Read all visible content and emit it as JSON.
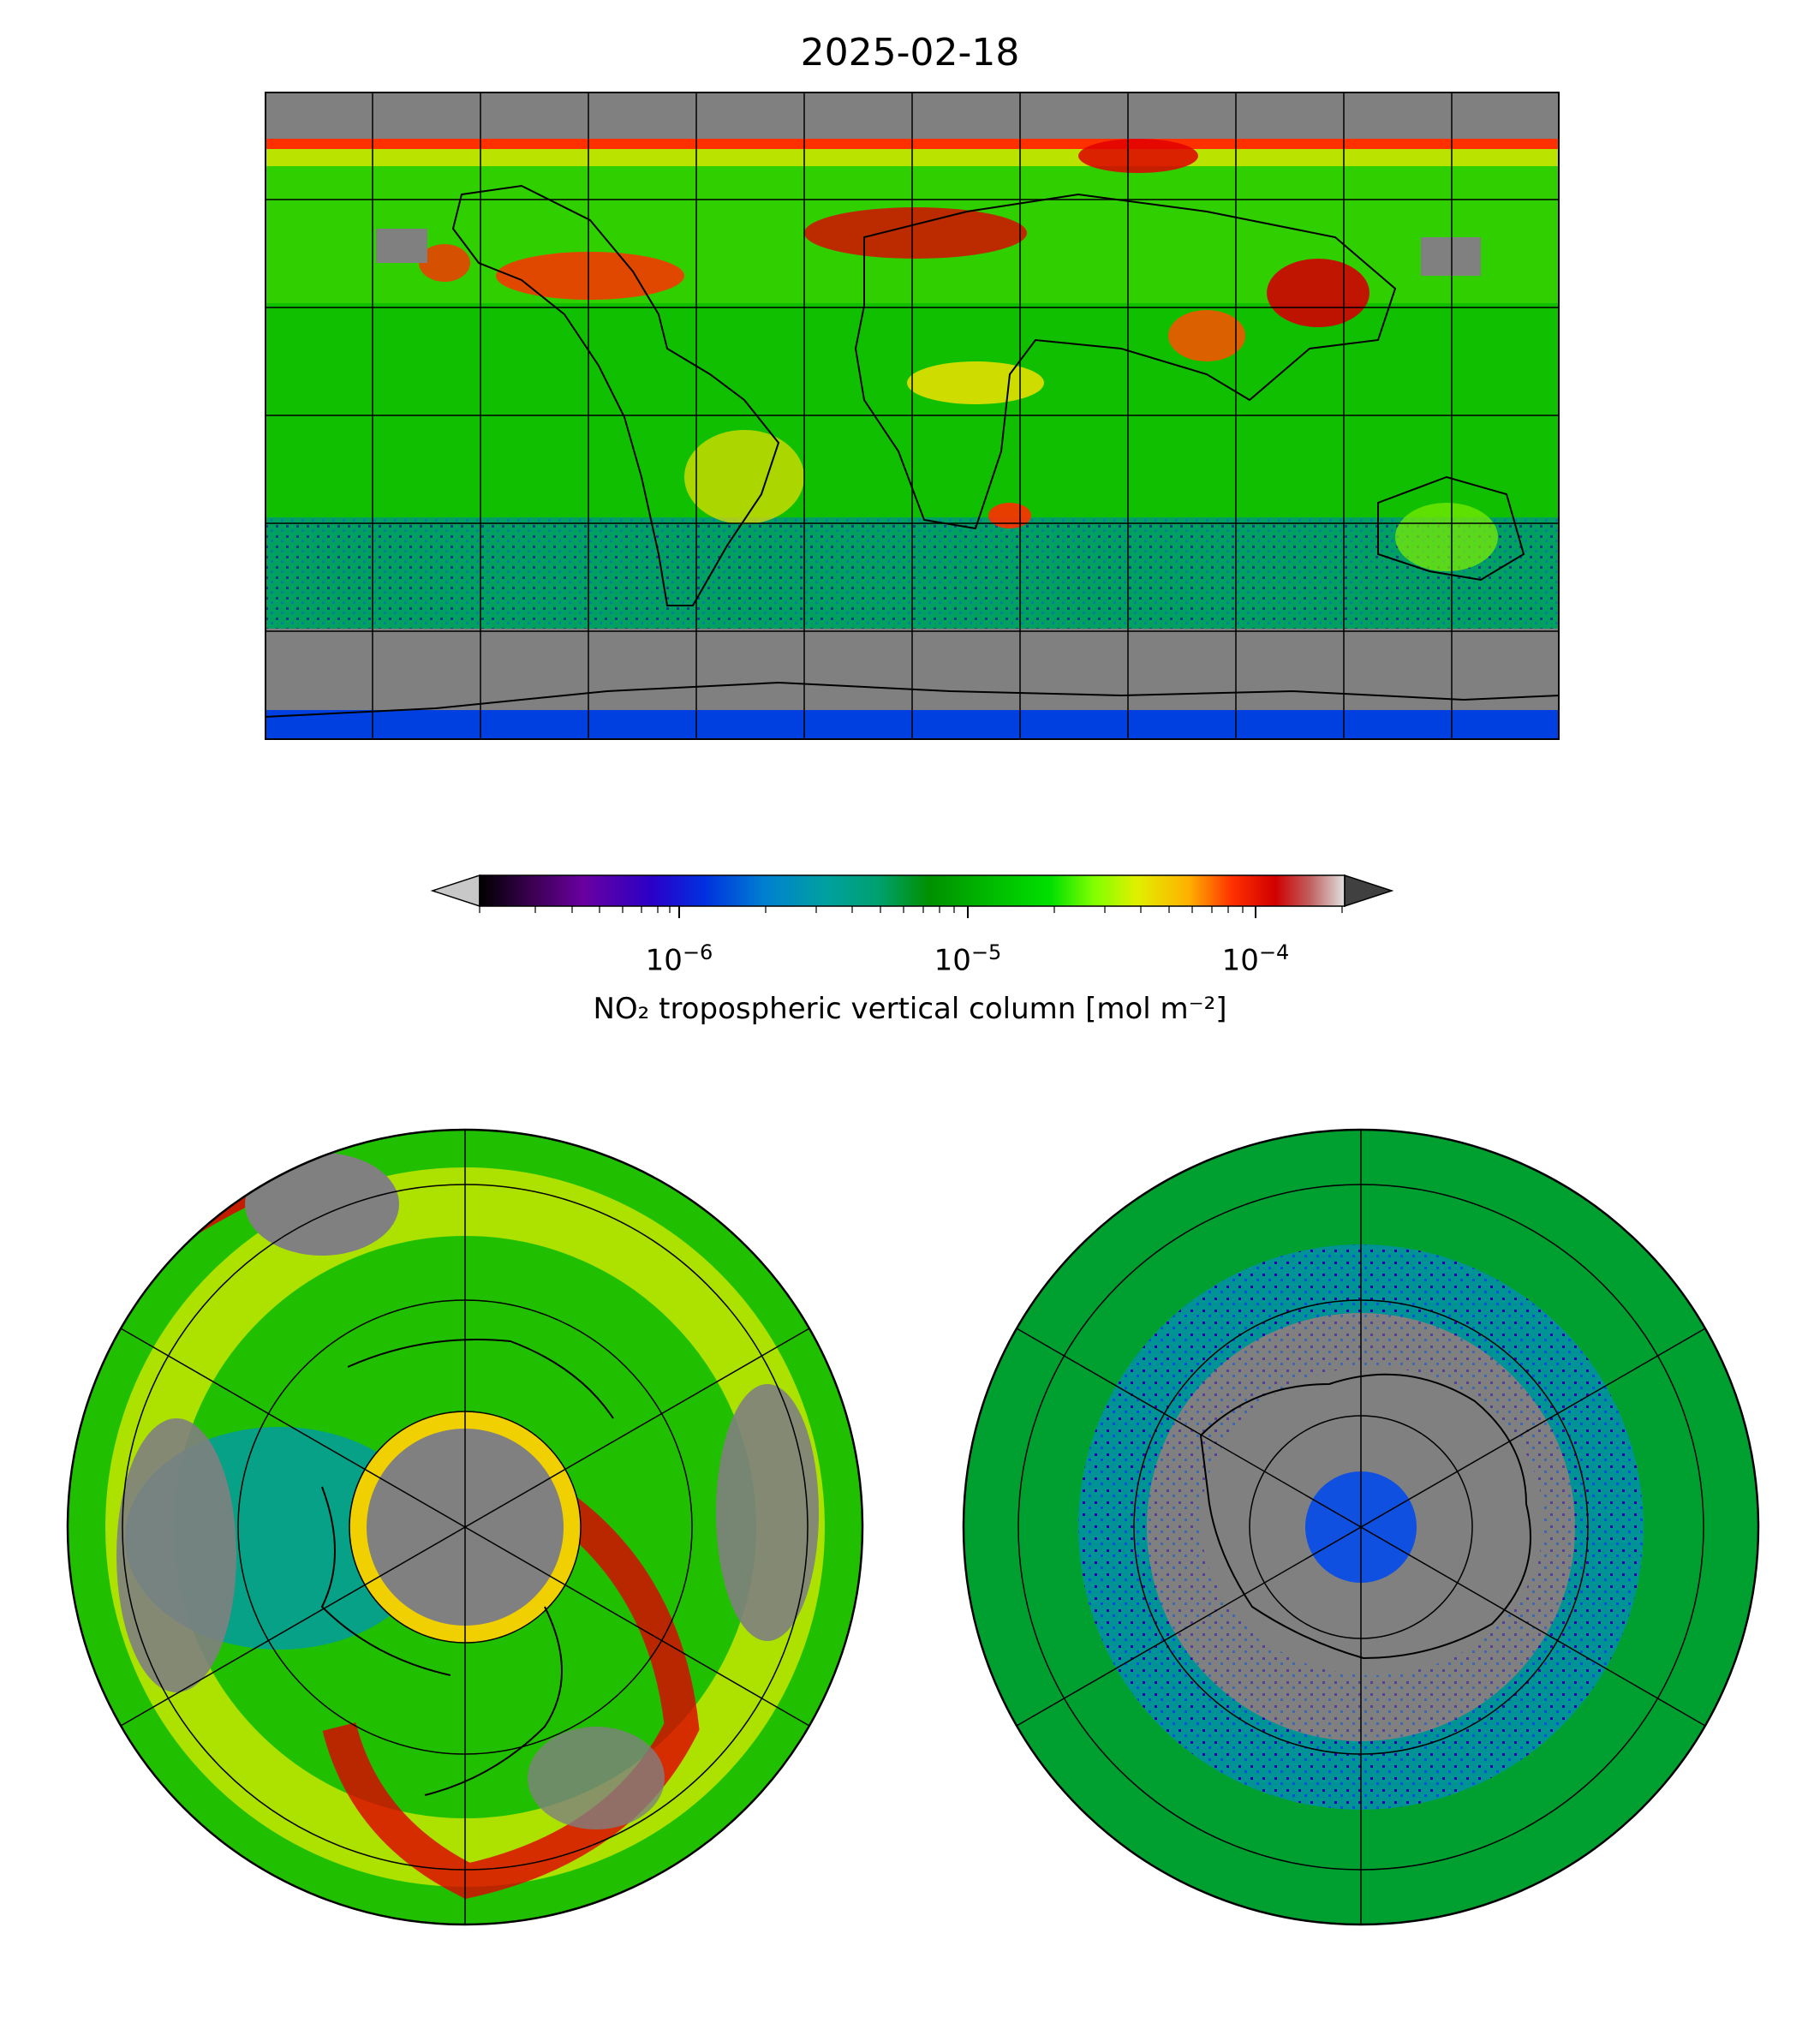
{
  "title": "2025-02-18",
  "colorbar": {
    "label": "NO₂ tropospheric vertical column [mol m⁻²]",
    "ticks": [
      {
        "base": "10",
        "exp": "−6",
        "value": 1e-06
      },
      {
        "base": "10",
        "exp": "−5",
        "value": 1e-05
      },
      {
        "base": "10",
        "exp": "−4",
        "value": 0.0001
      }
    ],
    "range": [
      2e-07,
      0.0002
    ],
    "scale": "log",
    "extend": "both",
    "colors": [
      "#000000",
      "#3a0050",
      "#6a00a0",
      "#2a00c8",
      "#0030e0",
      "#0080d0",
      "#00a0a0",
      "#00a070",
      "#009000",
      "#00c000",
      "#00e000",
      "#80ff00",
      "#e0f000",
      "#ffb000",
      "#ff3000",
      "#d00000",
      "#c0c0c0"
    ],
    "under_color": "#c8c8c8",
    "over_color": "#404040"
  },
  "maps": {
    "rect": {
      "projection": "PlateCarree",
      "nodata_color": "#808080"
    },
    "north": {
      "projection": "NorthPolarStereo",
      "nodata_color": "#808080"
    },
    "south": {
      "projection": "SouthPolarStereo",
      "nodata_color": "#808080"
    }
  },
  "colors": {
    "gray": "#808080",
    "green": "#00b400",
    "lime": "#30dc00",
    "yellow": "#f0f000",
    "orange": "#ffa000",
    "red": "#e00000",
    "blue": "#0050e0",
    "teal": "#0098a8",
    "purple": "#5000b0"
  }
}
